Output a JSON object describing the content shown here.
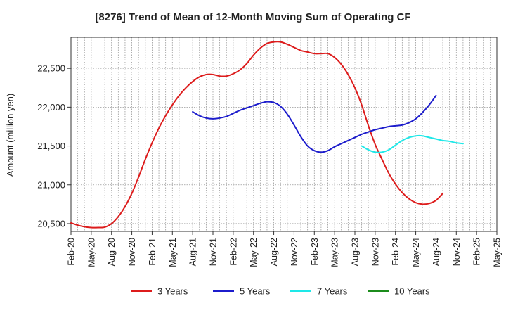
{
  "chart_data": {
    "type": "line",
    "title": "[8276]  Trend of Mean of 12-Month Moving Sum of Operating CF",
    "xlabel": "",
    "ylabel": "Amount (million yen)",
    "ylim": [
      20400,
      22900
    ],
    "yticks": [
      20500,
      21000,
      21500,
      22000,
      22500
    ],
    "ytick_labels": [
      "20,500",
      "21,000",
      "21,500",
      "22,000",
      "22,500"
    ],
    "x_range": [
      0,
      63
    ],
    "xticks": [
      0,
      3,
      6,
      9,
      12,
      15,
      18,
      21,
      24,
      27,
      30,
      33,
      36,
      39,
      42,
      45,
      48,
      51,
      54,
      57,
      60,
      63
    ],
    "xtick_labels": [
      "Feb-20",
      "May-20",
      "Aug-20",
      "Nov-20",
      "Feb-21",
      "May-21",
      "Aug-21",
      "Nov-21",
      "Feb-22",
      "May-22",
      "Aug-22",
      "Nov-22",
      "Feb-23",
      "May-23",
      "Aug-23",
      "Nov-23",
      "Feb-24",
      "May-24",
      "Aug-24",
      "Nov-24",
      "Feb-25",
      "May-25"
    ],
    "grid": true,
    "legend_position": "bottom",
    "series": [
      {
        "name": "3 Years",
        "color": "#dd1c1c",
        "start_index": 0,
        "values": [
          20510,
          20480,
          20460,
          20450,
          20450,
          20455,
          20500,
          20590,
          20720,
          20890,
          21100,
          21330,
          21540,
          21730,
          21890,
          22030,
          22150,
          22250,
          22330,
          22390,
          22420,
          22420,
          22400,
          22400,
          22430,
          22480,
          22560,
          22670,
          22760,
          22820,
          22840,
          22840,
          22810,
          22770,
          22730,
          22710,
          22690,
          22690,
          22690,
          22640,
          22550,
          22420,
          22250,
          22030,
          21760,
          21520,
          21330,
          21150,
          21010,
          20900,
          20820,
          20770,
          20750,
          20760,
          20800,
          20890
        ]
      },
      {
        "name": "5 Years",
        "color": "#1c1ccc",
        "start_index": 18,
        "values": [
          21940,
          21890,
          21860,
          21850,
          21860,
          21880,
          21920,
          21960,
          21990,
          22020,
          22050,
          22070,
          22060,
          22010,
          21910,
          21770,
          21620,
          21500,
          21440,
          21420,
          21440,
          21490,
          21530,
          21570,
          21610,
          21650,
          21680,
          21710,
          21730,
          21750,
          21760,
          21770,
          21800,
          21850,
          21930,
          22030,
          22150
        ]
      },
      {
        "name": "7 Years",
        "color": "#1ee8e8",
        "start_index": 43,
        "values": [
          21500,
          21450,
          21420,
          21420,
          21450,
          21510,
          21570,
          21610,
          21630,
          21630,
          21610,
          21590,
          21570,
          21560,
          21540,
          21530
        ]
      },
      {
        "name": "10 Years",
        "color": "#1c8c1c",
        "start_index": 0,
        "values": []
      }
    ]
  }
}
